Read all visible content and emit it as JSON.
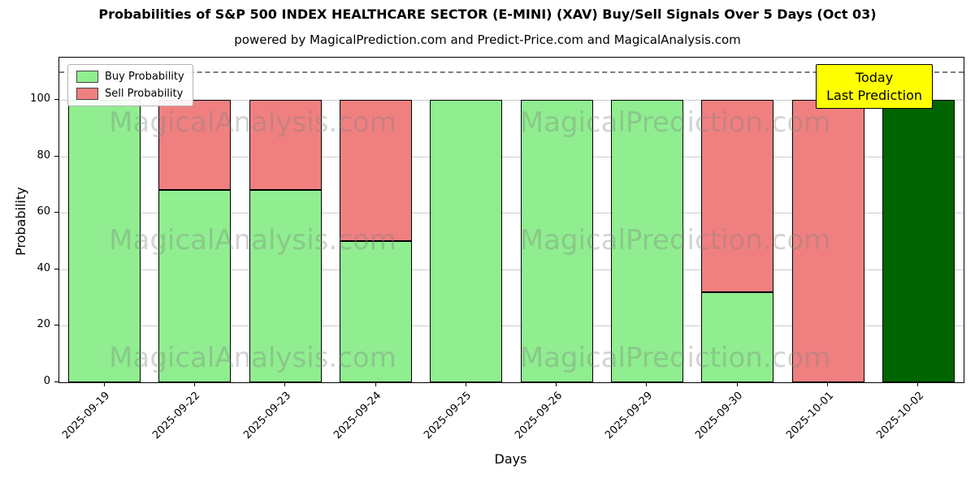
{
  "title": "Probabilities of S&P 500 INDEX HEALTHCARE SECTOR (E-MINI) (XAV) Buy/Sell Signals Over 5 Days (Oct 03)",
  "subtitle": "powered by MagicalPrediction.com and Predict-Price.com and MagicalAnalysis.com",
  "chart_data": {
    "type": "bar",
    "stacked": true,
    "title": "Probabilities of S&P 500 INDEX HEALTHCARE SECTOR (E-MINI) (XAV) Buy/Sell Signals Over 5 Days (Oct 03)",
    "xlabel": "Days",
    "ylabel": "Probability",
    "categories": [
      "2025-09-19",
      "2025-09-22",
      "2025-09-23",
      "2025-09-24",
      "2025-09-25",
      "2025-09-26",
      "2025-09-29",
      "2025-09-30",
      "2025-10-01",
      "2025-10-02"
    ],
    "series": [
      {
        "name": "Buy Probability",
        "color": "#90EE90",
        "in_legend": true,
        "values": [
          100,
          68,
          68,
          50,
          100,
          100,
          100,
          32,
          0,
          0
        ]
      },
      {
        "name": "Sell Probability",
        "color": "#F08080",
        "in_legend": true,
        "values": [
          0,
          32,
          32,
          50,
          0,
          0,
          0,
          68,
          100,
          0
        ]
      },
      {
        "name": "Today Prediction",
        "color": "#006400",
        "in_legend": false,
        "values": [
          0,
          0,
          0,
          0,
          0,
          0,
          0,
          0,
          0,
          100
        ]
      }
    ],
    "yticks": [
      0,
      20,
      40,
      60,
      80,
      100
    ],
    "ylim": [
      0,
      115
    ],
    "dashed_line_y": 110,
    "grid": true,
    "legend_position": "upper left",
    "annotation": {
      "lines": [
        "Today",
        "Last Prediction"
      ],
      "bg_color": "#FFFF00"
    },
    "watermarks": [
      "MagicalAnalysis.com",
      "MagicalPrediction.com"
    ]
  }
}
